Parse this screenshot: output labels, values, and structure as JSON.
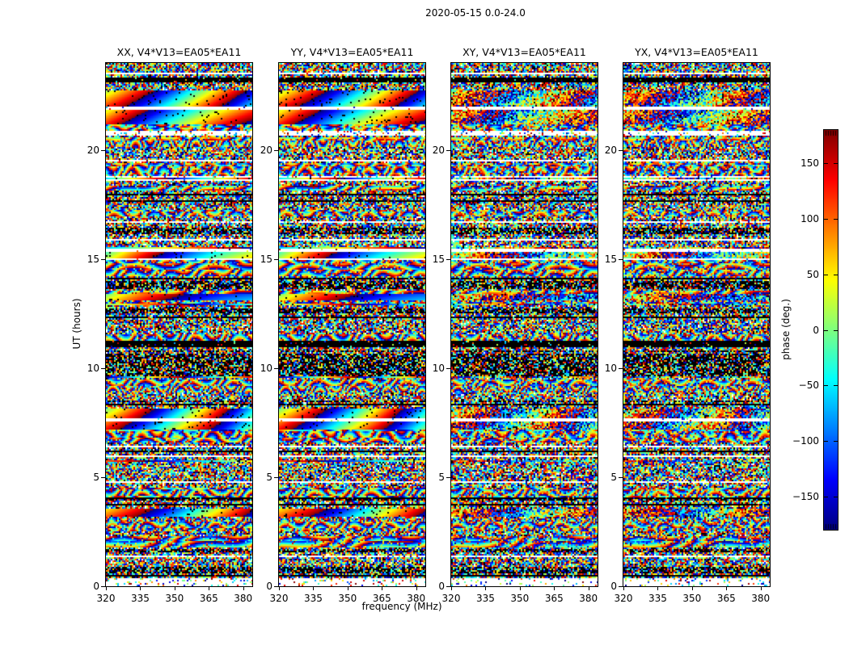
{
  "chart_data": {
    "type": "heatmap",
    "suptitle": "2020-05-15 0.0-24.0",
    "xlabel": "frequency (MHz)",
    "ylabel": "UT (hours)",
    "colormap": "jet",
    "x_ticks": [
      320,
      335,
      350,
      365,
      380
    ],
    "x_range": [
      320,
      384
    ],
    "y_ticks": [
      0,
      5,
      10,
      15,
      20
    ],
    "y_range": [
      0,
      24
    ],
    "panels": [
      {
        "title": "XX, V4*V13=EA05*EA11",
        "pol": "XX"
      },
      {
        "title": "YY, V4*V13=EA05*EA11",
        "pol": "YY"
      },
      {
        "title": "XY, V4*V13=EA05*EA11",
        "pol": "XY"
      },
      {
        "title": "YX, V4*V13=EA05*EA11",
        "pol": "YX"
      }
    ],
    "colorbar": {
      "label": "phase (deg.)",
      "ticks": [
        150,
        100,
        50,
        0,
        -50,
        -100,
        -150
      ],
      "range": [
        -180,
        180
      ]
    },
    "description": "Visibility phase vs frequency (320-384 MHz) vs UT time (0-24 h) waterfall for baseline V4*V13 (antennas EA05*EA11), four polarization products. Content is mostly random wrapped-phase speckle with horizontal structure: black scan-boundary rows, white flagged gaps, smooth rainbow phase-wrap bands on calibrator scans, and rippled interference-fringe textures.",
    "bands": [
      {
        "start": 0.028,
        "end": 0.036,
        "type": "black"
      },
      {
        "start": 0.054,
        "end": 0.083,
        "type": "smooth",
        "wraps": 1.3,
        "phase0": 0.55
      },
      {
        "start": 0.083,
        "end": 0.09,
        "type": "white"
      },
      {
        "start": 0.09,
        "end": 0.116,
        "type": "smooth",
        "wraps": 1.5,
        "phase0": 0.6
      },
      {
        "start": 0.118,
        "end": 0.13,
        "type": "ripple"
      },
      {
        "start": 0.13,
        "end": 0.14,
        "type": "sparse"
      },
      {
        "start": 0.355,
        "end": 0.36,
        "type": "white"
      },
      {
        "start": 0.36,
        "end": 0.372,
        "type": "smooth",
        "wraps": 1.6,
        "phase0": 0.45
      },
      {
        "start": 0.372,
        "end": 0.376,
        "type": "white"
      },
      {
        "start": 0.378,
        "end": 0.412,
        "type": "ripple"
      },
      {
        "start": 0.44,
        "end": 0.455,
        "type": "smooth",
        "wraps": 1.2,
        "phase0": 0.5
      },
      {
        "start": 0.53,
        "end": 0.542,
        "type": "black"
      },
      {
        "start": 0.555,
        "end": 0.6,
        "type": "dark"
      },
      {
        "start": 0.66,
        "end": 0.678,
        "type": "smooth",
        "wraps": 1.4,
        "phase0": 0.5
      },
      {
        "start": 0.678,
        "end": 0.684,
        "type": "white"
      },
      {
        "start": 0.684,
        "end": 0.7,
        "type": "smooth",
        "wraps": 1.4,
        "phase0": 0.75
      },
      {
        "start": 0.702,
        "end": 0.726,
        "type": "ripple"
      },
      {
        "start": 0.852,
        "end": 0.868,
        "type": "smooth",
        "wraps": 1.0,
        "phase0": 0.65
      },
      {
        "start": 0.87,
        "end": 0.895,
        "type": "ripple"
      },
      {
        "start": 0.985,
        "end": 1.0,
        "type": "sparse"
      }
    ]
  }
}
